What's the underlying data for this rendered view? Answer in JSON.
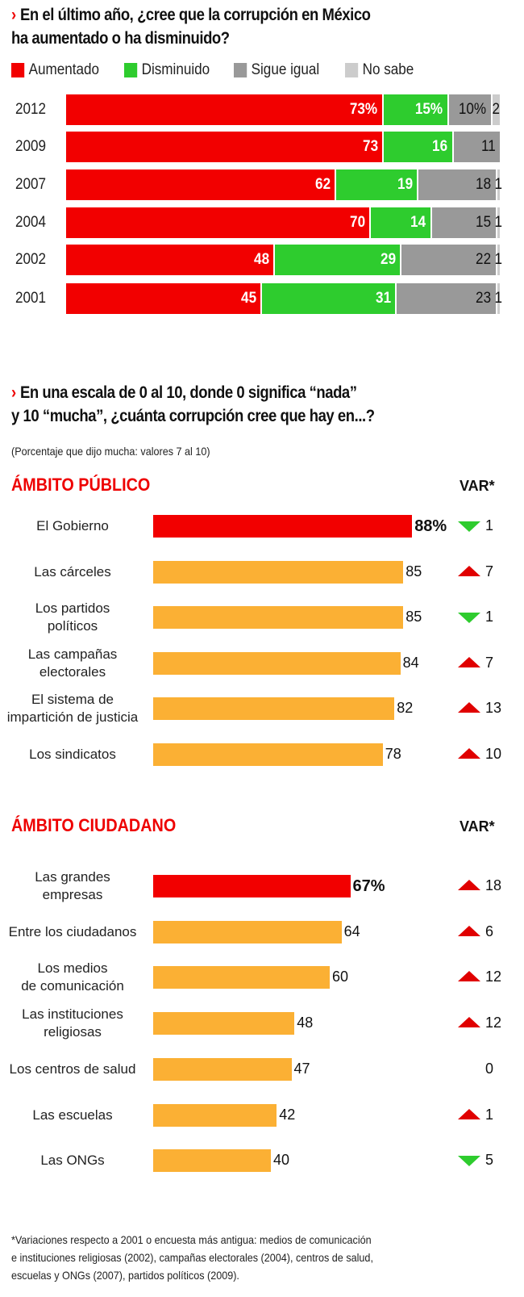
{
  "chart_data": [
    {
      "type": "bar",
      "stacked": true,
      "orientation": "horizontal",
      "title": "En el último año, ¿cree que la corrupción en México ha aumentado o ha disminuido?",
      "title_lines": [
        "En el último año, ¿cree que la corrupción en México",
        "ha aumentado o ha disminuido?"
      ],
      "categories": [
        "2012",
        "2009",
        "2007",
        "2004",
        "2002",
        "2001"
      ],
      "series": [
        {
          "name": "Aumentado",
          "color": "#f20000",
          "values": [
            73,
            73,
            62,
            70,
            48,
            45
          ],
          "labels": [
            "73%",
            "73",
            "62",
            "70",
            "48",
            "45"
          ]
        },
        {
          "name": "Disminuido",
          "color": "#2ecc2e",
          "values": [
            15,
            16,
            19,
            14,
            29,
            31
          ],
          "labels": [
            "15%",
            "16",
            "19",
            "14",
            "29",
            "31"
          ]
        },
        {
          "name": "Sigue igual",
          "color": "#999999",
          "values": [
            10,
            11,
            18,
            15,
            22,
            23
          ],
          "labels": [
            "10%",
            "11",
            "18",
            "15",
            "22",
            "23"
          ]
        },
        {
          "name": "No sabe",
          "color": "#cccccc",
          "values": [
            2,
            0,
            1,
            1,
            1,
            1
          ],
          "labels": [
            "2",
            "",
            "1",
            "1",
            "1",
            "1"
          ]
        }
      ],
      "xlim": [
        0,
        100
      ]
    },
    {
      "type": "bar",
      "orientation": "horizontal",
      "title_lines": [
        "En una escala de 0 al 10, donde 0 significa “nada”",
        "y 10 “mucha”, ¿cuánta corrupción cree que hay en...?"
      ],
      "subtitle": "(Porcentaje que dijo mucha: valores 7 al 10)",
      "var_header": "VAR*",
      "groups": [
        {
          "name": "ÁMBITO PÚBLICO",
          "items": [
            {
              "label": [
                "El Gobierno"
              ],
              "value": 88,
              "text": "88%",
              "var": 1,
              "dir": "down",
              "highlight": true
            },
            {
              "label": [
                "Las cárceles"
              ],
              "value": 85,
              "text": "85",
              "var": 7,
              "dir": "up"
            },
            {
              "label": [
                "Los partidos",
                "políticos"
              ],
              "value": 85,
              "text": "85",
              "var": 1,
              "dir": "down"
            },
            {
              "label": [
                "Las campañas",
                "electorales"
              ],
              "value": 84,
              "text": "84",
              "var": 7,
              "dir": "up"
            },
            {
              "label": [
                "El sistema de",
                "impartición de justicia"
              ],
              "value": 82,
              "text": "82",
              "var": 13,
              "dir": "up"
            },
            {
              "label": [
                "Los sindicatos"
              ],
              "value": 78,
              "text": "78",
              "var": 10,
              "dir": "up"
            }
          ]
        },
        {
          "name": "ÁMBITO CIUDADANO",
          "items": [
            {
              "label": [
                "Las grandes",
                "empresas"
              ],
              "value": 67,
              "text": "67%",
              "var": 18,
              "dir": "up",
              "highlight": true
            },
            {
              "label": [
                "Entre los ciudadanos"
              ],
              "value": 64,
              "text": "64",
              "var": 6,
              "dir": "up"
            },
            {
              "label": [
                "Los medios",
                "de comunicación"
              ],
              "value": 60,
              "text": "60",
              "var": 12,
              "dir": "up"
            },
            {
              "label": [
                "Las instituciones",
                "religiosas"
              ],
              "value": 48,
              "text": "48",
              "var": 12,
              "dir": "up"
            },
            {
              "label": [
                "Los centros de salud"
              ],
              "value": 47,
              "text": "47",
              "var": 0,
              "dir": "none"
            },
            {
              "label": [
                "Las escuelas"
              ],
              "value": 42,
              "text": "42",
              "var": 1,
              "dir": "up"
            },
            {
              "label": [
                "Las ONGs"
              ],
              "value": 40,
              "text": "40",
              "var": 5,
              "dir": "down"
            }
          ]
        }
      ],
      "colors": {
        "highlight": "#f20000",
        "bar": "#fbb034",
        "up": "#e00000",
        "down": "#2ecc2e"
      },
      "xlim": [
        0,
        100
      ]
    }
  ],
  "footnote": [
    "*Variaciones respecto a 2001 o encuesta más antigua: medios de comunicación",
    "e instituciones religiosas (2002), campañas electorales (2004), centros de salud,",
    "escuelas y ONGs (2007), partidos políticos (2009)."
  ]
}
